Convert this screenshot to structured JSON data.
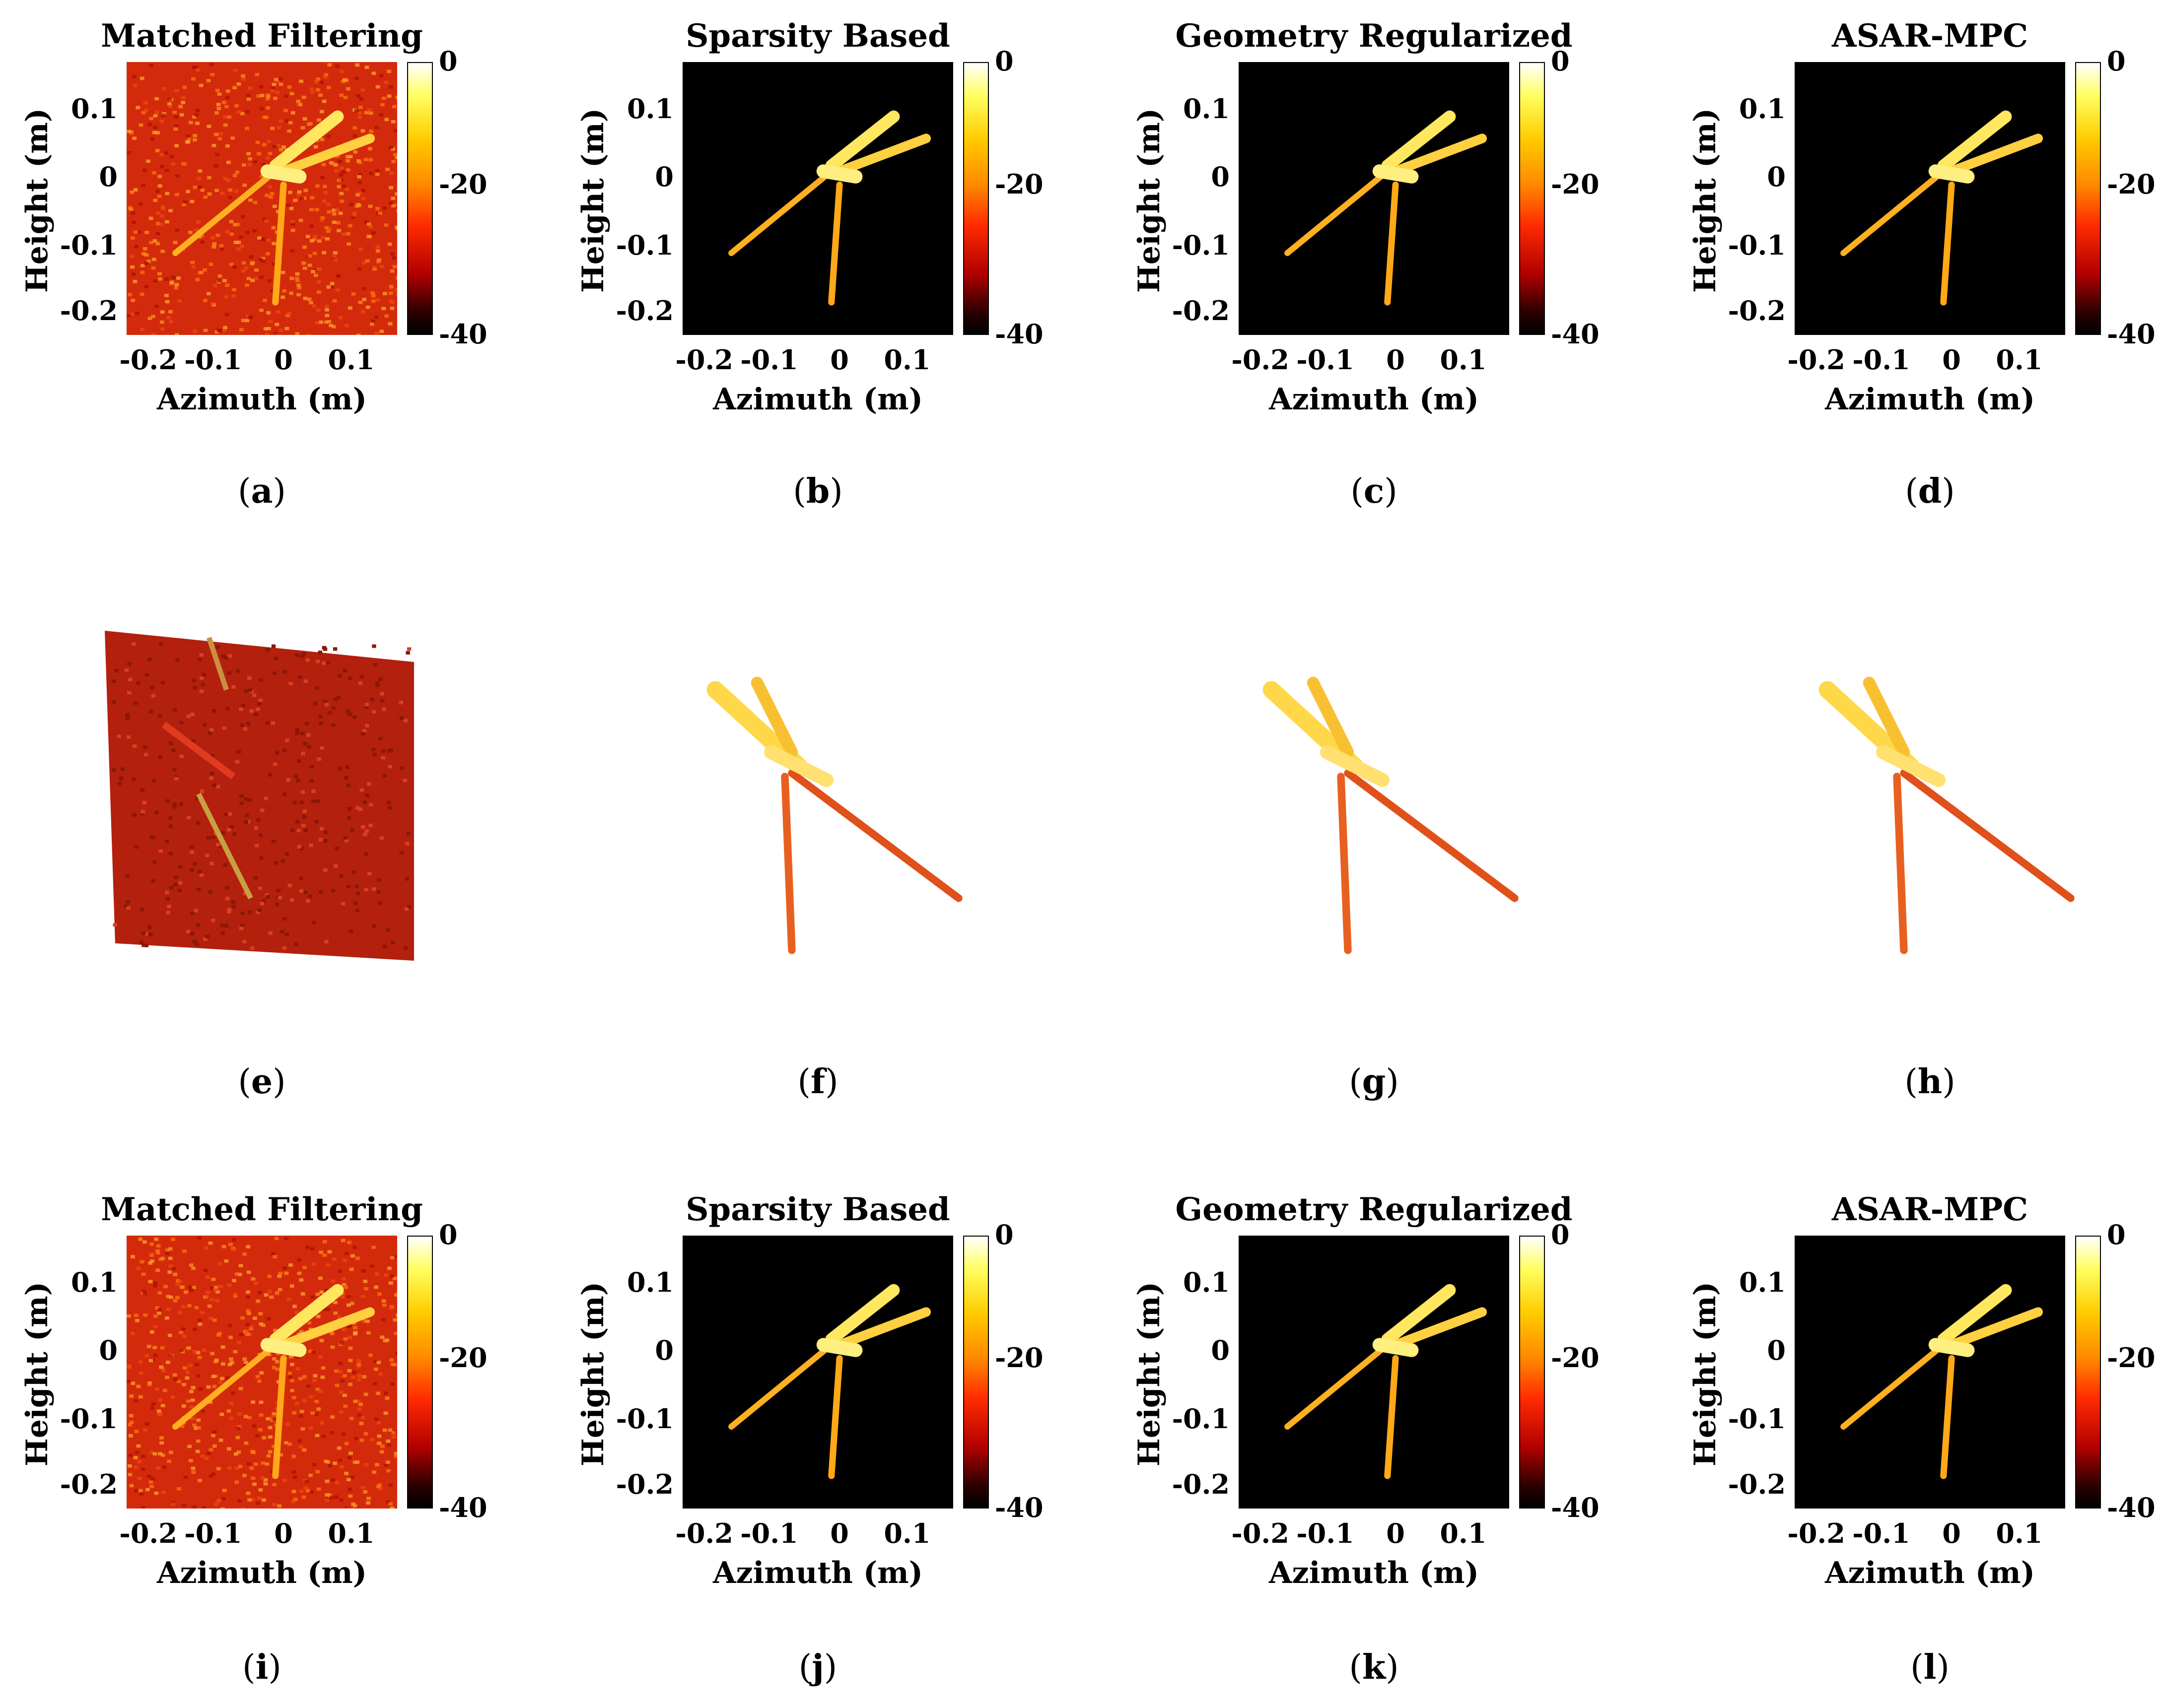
{
  "colors": {
    "heat_bg_dark": "#000000",
    "heat_bg_noise": "#d8240a",
    "accent": "#ffd400"
  },
  "rows": [
    {
      "row": "top",
      "panels": [
        {
          "title": "Matched Filtering",
          "caption_letter": "a",
          "style": "noise"
        },
        {
          "title": "Sparsity Based",
          "caption_letter": "b",
          "style": "dark"
        },
        {
          "title": "Geometry Regularized",
          "caption_letter": "c",
          "style": "dark"
        },
        {
          "title": "ASAR-MPC",
          "caption_letter": "d",
          "style": "dark"
        }
      ]
    },
    {
      "row": "middle",
      "panels": [
        {
          "caption_letter": "e",
          "style": "3d-noise"
        },
        {
          "caption_letter": "f",
          "style": "3d"
        },
        {
          "caption_letter": "g",
          "style": "3d"
        },
        {
          "caption_letter": "h",
          "style": "3d"
        }
      ]
    },
    {
      "row": "bottom",
      "panels": [
        {
          "title": "Matched Filtering",
          "caption_letter": "i",
          "style": "noise"
        },
        {
          "title": "Sparsity Based",
          "caption_letter": "j",
          "style": "dark"
        },
        {
          "title": "Geometry Regularized",
          "caption_letter": "k",
          "style": "dark"
        },
        {
          "title": "ASAR-MPC",
          "caption_letter": "l",
          "style": "dark"
        }
      ]
    }
  ],
  "axes": {
    "xlabel": "Azimuth (m)",
    "ylabel": "Height (m)",
    "xticks": [
      "-0.2",
      "-0.1",
      "0",
      "0.1"
    ],
    "yticks": [
      "0.1",
      "0",
      "-0.1",
      "-0.2"
    ],
    "colorbar_ticks": [
      "0",
      "-20",
      "-40"
    ]
  },
  "caption_parens": {
    "open": "(",
    "close": ")"
  }
}
